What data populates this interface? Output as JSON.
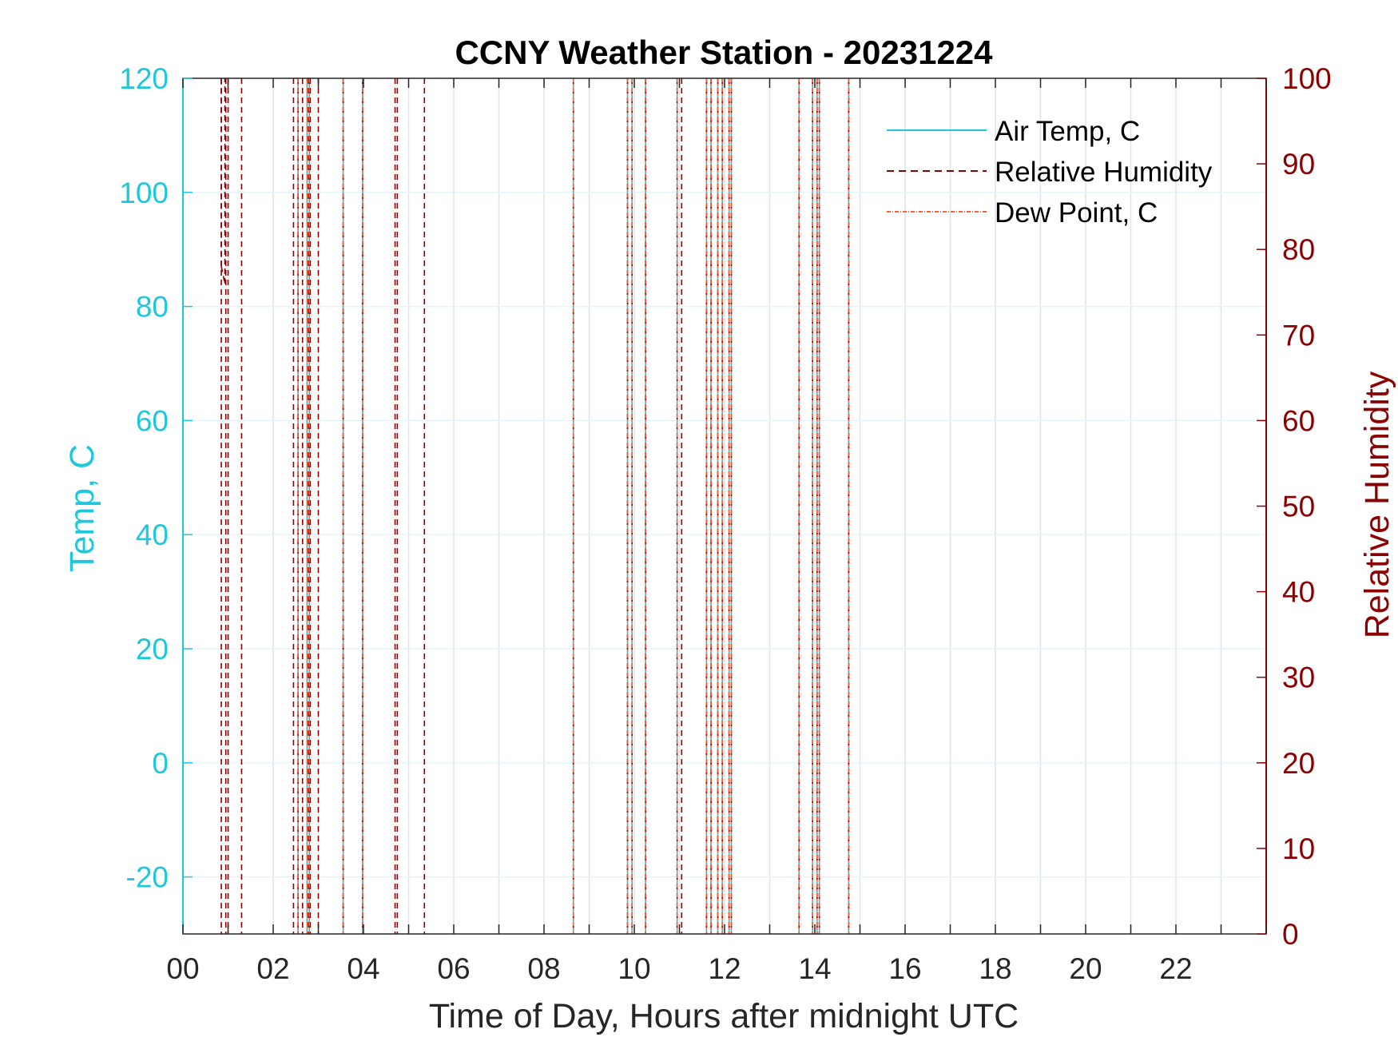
{
  "chart_data": {
    "type": "line",
    "title": "CCNY Weather Station - 20231224",
    "xlabel": "Time of Day, Hours after midnight UTC",
    "ylabel_left": "Temp, C",
    "ylabel_right": "Relative Humidity",
    "xlim": [
      0,
      24
    ],
    "ylim_left": [
      -30,
      120
    ],
    "ylim_right": [
      0,
      100
    ],
    "x_ticks": [
      0,
      2,
      4,
      6,
      8,
      10,
      12,
      14,
      16,
      18,
      20,
      22
    ],
    "x_tick_labels": [
      "00",
      "02",
      "04",
      "06",
      "08",
      "10",
      "12",
      "14",
      "16",
      "18",
      "20",
      "22"
    ],
    "y_left_ticks": [
      -20,
      0,
      20,
      40,
      60,
      80,
      100,
      120
    ],
    "y_left_tick_labels": [
      "-20",
      "0",
      "20",
      "40",
      "60",
      "80",
      "100",
      "120"
    ],
    "y_right_ticks": [
      0,
      10,
      20,
      30,
      40,
      50,
      60,
      70,
      80,
      90,
      100
    ],
    "y_right_tick_labels": [
      "0",
      "10",
      "20",
      "30",
      "40",
      "50",
      "60",
      "70",
      "80",
      "90",
      "100"
    ],
    "grid": true,
    "legend_position": "top-right",
    "colors": {
      "air_temp": "#1ec8dc",
      "relative_humidity": "#8b0000",
      "dew_point": "#f0643c",
      "left_axis": "#1ec8dc",
      "right_axis": "#8b0000",
      "grid": "#dce6ee"
    },
    "series": [
      {
        "name": "Air Temp, C",
        "axis": "left",
        "style": "solid",
        "spikes_x": [
          2.55,
          2.75,
          2.8,
          3.55,
          3.98,
          8.65,
          9.85,
          9.95,
          10.25,
          10.95,
          11.6,
          11.7,
          11.85,
          11.95,
          12.1,
          12.15,
          13.65,
          13.95,
          14.05,
          14.1,
          14.75
        ]
      },
      {
        "name": "Relative Humidity",
        "axis": "right",
        "style": "dashed",
        "spikes_x": [
          0.85,
          0.95,
          1.0,
          1.3,
          2.45,
          2.55,
          2.65,
          2.78,
          2.82,
          3.0,
          3.55,
          3.98,
          4.7,
          4.75,
          5.35,
          8.65,
          9.85,
          9.95,
          10.25,
          10.95,
          11.05,
          11.6,
          11.7,
          11.85,
          11.95,
          12.1,
          12.15,
          13.65,
          13.95,
          14.05,
          14.1,
          14.75
        ],
        "segments": [
          {
            "x": [
              0.85,
              0.85
            ],
            "y": [
              78,
              100
            ]
          },
          {
            "x": [
              0.85,
              0.93
            ],
            "y": [
              78,
              76
            ]
          },
          {
            "x": [
              0.93,
              0.93
            ],
            "y": [
              76,
              100
            ]
          }
        ]
      },
      {
        "name": "Dew Point, C",
        "axis": "left",
        "style": "dash-dot",
        "spikes_x": [
          2.55,
          2.75,
          2.8,
          3.55,
          3.98,
          8.65,
          9.85,
          9.95,
          10.25,
          10.95,
          11.6,
          11.7,
          11.85,
          11.95,
          12.1,
          12.15,
          13.65,
          13.95,
          14.05,
          14.1,
          14.75
        ]
      }
    ]
  }
}
